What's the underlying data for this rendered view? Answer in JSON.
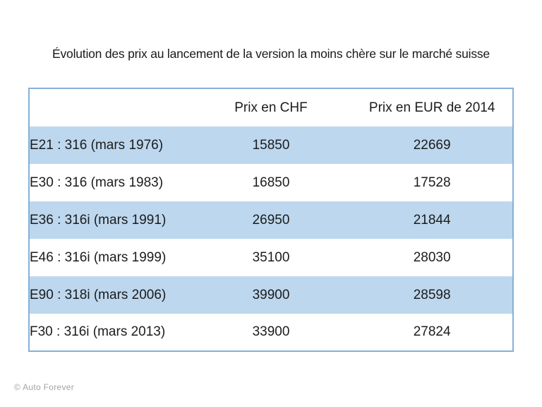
{
  "title": "Évolution des prix au lancement de la version la moins chère sur le marché suisse",
  "table": {
    "headers": [
      "",
      "Prix en CHF",
      "Prix en EUR de 2014"
    ],
    "rows": [
      {
        "model": "E21 : 316 (mars 1976)",
        "chf": "15850",
        "eur": "22669"
      },
      {
        "model": "E30 : 316 (mars 1983)",
        "chf": "16850",
        "eur": "17528"
      },
      {
        "model": "E36 : 316i (mars 1991)",
        "chf": "26950",
        "eur": "21844"
      },
      {
        "model": "E46 : 316i (mars 1999)",
        "chf": "35100",
        "eur": "28030"
      },
      {
        "model": "E90 : 318i (mars 2006)",
        "chf": "39900",
        "eur": "28598"
      },
      {
        "model": "F30 : 316i (mars 2013)",
        "chf": "33900",
        "eur": "27824"
      }
    ]
  },
  "footer": "© Auto Forever",
  "colors": {
    "band": "#bdd7ee",
    "table_border": "#84b1d9",
    "footer_text": "#a3a3a3",
    "text": "#1c1c1c",
    "background": "#ffffff"
  },
  "chart_data": {
    "type": "table",
    "title": "Évolution des prix au lancement de la version la moins chère sur le marché suisse",
    "columns": [
      "",
      "Prix en CHF",
      "Prix en EUR de 2014"
    ],
    "rows": [
      [
        "E21 : 316 (mars 1976)",
        15850,
        22669
      ],
      [
        "E30 : 316 (mars 1983)",
        16850,
        17528
      ],
      [
        "E36 : 316i (mars 1991)",
        26950,
        21844
      ],
      [
        "E46 : 316i (mars 1999)",
        35100,
        28030
      ],
      [
        "E90 : 318i (mars 2006)",
        39900,
        28598
      ],
      [
        "F30 : 316i (mars 2013)",
        33900,
        27824
      ]
    ],
    "layout_hints": {
      "banded_rows": "odd data rows filled #bdd7ee, even rows white",
      "first_column_align": "left",
      "number_columns_align": "center",
      "outer_border_only": true
    }
  }
}
